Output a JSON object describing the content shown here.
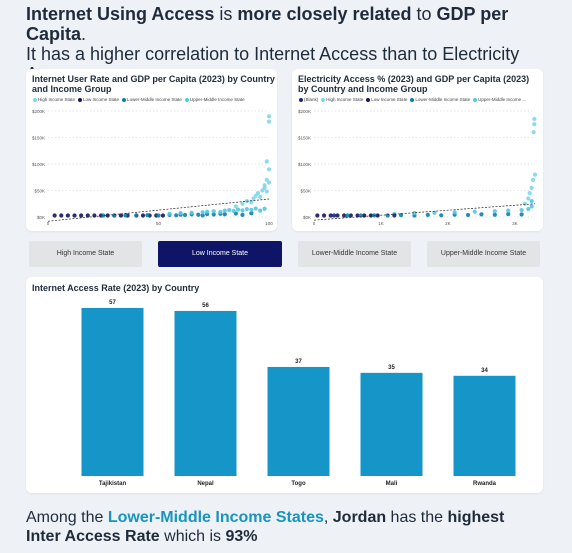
{
  "headline": {
    "part1": "Internet Using Access",
    "part2": " is ",
    "part3": "more closely related",
    "part4": " to ",
    "part5": "GDP per Capita",
    "part6": ".",
    "line2": "It has a higher correlation to Internet Access than to Electricity Access."
  },
  "colors": {
    "high": "#7fd6ea",
    "low": "#17155e",
    "lower_middle": "#117fa4",
    "upper_middle": "#52c8e3",
    "blank": "#1a2a7a",
    "bar": "#1595c8",
    "active_tab": "#0f1566"
  },
  "tabs": [
    {
      "label": "High Income State",
      "active": false
    },
    {
      "label": "Low Income State",
      "active": true
    },
    {
      "label": "Lower-Middle Income State",
      "active": false
    },
    {
      "label": "Upper-Middle Income State",
      "active": false
    }
  ],
  "scatter1": {
    "title_line1": "Internet User Rate and GDP per Capita (2023) by Country",
    "title_line2": "and Income Group",
    "legend": [
      {
        "label": "High Income State",
        "color_key": "high"
      },
      {
        "label": "Low Income State",
        "color_key": "low"
      },
      {
        "label": "Lower-Middle Income State",
        "color_key": "lower_middle"
      },
      {
        "label": "Upper-Middle Income State",
        "color_key": "upper_middle"
      }
    ]
  },
  "scatter2": {
    "title_line1": "Electricity Access % (2023) and GDP per Capita (2023)",
    "title_line2": "by Country and Income Group",
    "legend": [
      {
        "label": "(Blank)",
        "color_key": "blank"
      },
      {
        "label": "High Income State",
        "color_key": "high"
      },
      {
        "label": "Low Income State",
        "color_key": "low"
      },
      {
        "label": "Lower-Middle Income State",
        "color_key": "lower_middle"
      },
      {
        "label": "Upper-Middle Income ...",
        "color_key": "upper_middle"
      }
    ]
  },
  "bar_title": "Internet Access Rate (2023) by Country",
  "footer": {
    "part1": "Among the ",
    "part2": "Lower-Middle Income States",
    "part3": ", ",
    "part4": "Jordan",
    "part5": " has the ",
    "part6": "highest",
    "part7": "Inter Access Rate",
    "part8": " which is ",
    "part9": "93%"
  },
  "chart_data": [
    {
      "type": "scatter",
      "title": "Internet User Rate and GDP per Capita (2023) by Country and Income Group",
      "xlabel": "",
      "ylabel": "",
      "xlim": [
        0,
        100
      ],
      "ylim": [
        0,
        200000
      ],
      "x_ticks": [
        "0",
        "50",
        "100"
      ],
      "y_ticks": [
        "$0K",
        "$50K",
        "$100K",
        "$150K",
        "$200K"
      ],
      "grid": true,
      "legend_position": "top",
      "trend_line": {
        "x": [
          0,
          100
        ],
        "y": [
          -8000,
          34000
        ]
      },
      "series": [
        {
          "name": "Low Income State",
          "color_key": "low",
          "points": [
            [
              3,
              800
            ],
            [
              6,
              700
            ],
            [
              9,
              900
            ],
            [
              12,
              600
            ],
            [
              15,
              1000
            ],
            [
              18,
              900
            ],
            [
              21,
              800
            ],
            [
              24,
              1200
            ],
            [
              27,
              1000
            ],
            [
              30,
              1100
            ],
            [
              33,
              900
            ],
            [
              36,
              1300
            ],
            [
              40,
              1400
            ],
            [
              43,
              1200
            ],
            [
              46,
              1500
            ],
            [
              49,
              1100
            ],
            [
              52,
              1600
            ]
          ]
        },
        {
          "name": "Lower-Middle Income State",
          "color_key": "lower_middle",
          "points": [
            [
              25,
              2000
            ],
            [
              30,
              2500
            ],
            [
              35,
              3000
            ],
            [
              40,
              2200
            ],
            [
              45,
              3500
            ],
            [
              50,
              2800
            ],
            [
              55,
              4000
            ],
            [
              58,
              3200
            ],
            [
              60,
              4500
            ],
            [
              62,
              3800
            ],
            [
              65,
              5000
            ],
            [
              68,
              4200
            ],
            [
              70,
              3000
            ],
            [
              72,
              5500
            ],
            [
              75,
              4800
            ],
            [
              78,
              6000
            ],
            [
              80,
              5200
            ],
            [
              85,
              6500
            ],
            [
              88,
              4000
            ],
            [
              92,
              7000
            ]
          ]
        },
        {
          "name": "Upper-Middle Income State",
          "color_key": "upper_middle",
          "points": [
            [
              55,
              6000
            ],
            [
              60,
              7500
            ],
            [
              65,
              8000
            ],
            [
              70,
              9000
            ],
            [
              72,
              10000
            ],
            [
              75,
              11000
            ],
            [
              78,
              9500
            ],
            [
              80,
              12000
            ],
            [
              82,
              13000
            ],
            [
              84,
              11500
            ],
            [
              86,
              14000
            ],
            [
              88,
              12500
            ],
            [
              90,
              15000
            ],
            [
              92,
              13500
            ],
            [
              94,
              16000
            ],
            [
              96,
              12000
            ],
            [
              98,
              15500
            ]
          ]
        },
        {
          "name": "High Income State",
          "color_key": "high",
          "points": [
            [
              85,
              20000
            ],
            [
              88,
              25000
            ],
            [
              90,
              30000
            ],
            [
              92,
              28000
            ],
            [
              93,
              35000
            ],
            [
              94,
              40000
            ],
            [
              95,
              45000
            ],
            [
              96,
              38000
            ],
            [
              97,
              50000
            ],
            [
              98,
              55000
            ],
            [
              98,
              60000
            ],
            [
              99,
              48000
            ],
            [
              99,
              70000
            ],
            [
              99,
              105000
            ],
            [
              100,
              90000
            ],
            [
              100,
              65000
            ],
            [
              100,
              180000
            ],
            [
              100,
              190000
            ]
          ]
        }
      ]
    },
    {
      "type": "scatter",
      "title": "Electricity Access % (2023) and GDP per Capita (2023) by Country and Income Group",
      "xlabel": "",
      "ylabel": "",
      "xlim": [
        0,
        3300
      ],
      "ylim": [
        0,
        200000
      ],
      "x_ticks": [
        "0",
        "1K",
        "2K",
        "3K"
      ],
      "y_ticks": [
        "$0K",
        "$50K",
        "$100K",
        "$150K",
        "$200K"
      ],
      "grid": true,
      "legend_position": "top",
      "trend_line": {
        "x": [
          0,
          3300
        ],
        "y": [
          -6000,
          25000
        ]
      },
      "series": [
        {
          "name": "Low Income State",
          "color_key": "low",
          "points": [
            [
              50,
              800
            ],
            [
              150,
              700
            ],
            [
              250,
              900
            ],
            [
              350,
              600
            ],
            [
              450,
              1000
            ],
            [
              550,
              900
            ],
            [
              650,
              800
            ],
            [
              750,
              1200
            ],
            [
              850,
              1000
            ],
            [
              950,
              1100
            ]
          ]
        },
        {
          "name": "Lower-Middle Income State",
          "color_key": "lower_middle",
          "points": [
            [
              500,
              2000
            ],
            [
              700,
              2500
            ],
            [
              900,
              3000
            ],
            [
              1100,
              2200
            ],
            [
              1300,
              3500
            ],
            [
              1500,
              2800
            ],
            [
              1700,
              4000
            ],
            [
              1900,
              3200
            ],
            [
              2100,
              4500
            ],
            [
              2300,
              3800
            ],
            [
              2500,
              5000
            ],
            [
              2700,
              4200
            ],
            [
              2900,
              5500
            ],
            [
              3100,
              4800
            ]
          ]
        },
        {
          "name": "Upper-Middle Income State",
          "color_key": "upper_middle",
          "points": [
            [
              1200,
              6000
            ],
            [
              1500,
              7500
            ],
            [
              1800,
              8000
            ],
            [
              2100,
              9000
            ],
            [
              2400,
              10000
            ],
            [
              2700,
              11000
            ],
            [
              2900,
              12000
            ],
            [
              3100,
              13000
            ],
            [
              3200,
              15000
            ],
            [
              3250,
              20000
            ],
            [
              3250,
              30000
            ]
          ]
        },
        {
          "name": "High Income State",
          "color_key": "high",
          "points": [
            [
              3150,
              25000
            ],
            [
              3200,
              35000
            ],
            [
              3220,
              45000
            ],
            [
              3250,
              55000
            ],
            [
              3270,
              70000
            ],
            [
              3280,
              160000
            ],
            [
              3290,
              175000
            ],
            [
              3290,
              185000
            ],
            [
              3300,
              80000
            ]
          ]
        },
        {
          "name": "(Blank)",
          "color_key": "blank",
          "points": [
            [
              300,
              1500
            ],
            [
              1200,
              2500
            ]
          ]
        }
      ]
    },
    {
      "type": "bar",
      "title": "Internet Access Rate (2023) by Country",
      "categories": [
        "Tajikistan",
        "Nepal",
        "Togo",
        "Mali",
        "Rwanda"
      ],
      "values": [
        57,
        56,
        37,
        35,
        34
      ],
      "xlabel": "",
      "ylabel": "",
      "ylim": [
        0,
        57
      ],
      "data_labels": true
    }
  ]
}
